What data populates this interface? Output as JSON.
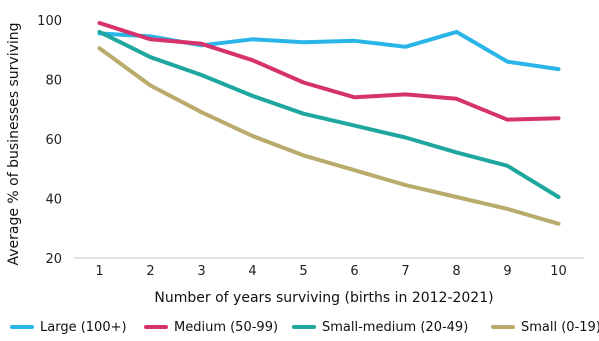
{
  "chart_data": {
    "type": "line",
    "xlabel": "Number of years surviving (births in 2012-2021)",
    "ylabel": "Average % of businesses surviving",
    "ylim": [
      20,
      100
    ],
    "yticks": [
      20,
      40,
      60,
      80,
      100
    ],
    "x": [
      1,
      2,
      3,
      4,
      5,
      6,
      7,
      8,
      9,
      10
    ],
    "grid": "baseline only",
    "legend_position": "bottom",
    "series": [
      {
        "name": "Large (100+)",
        "color": "#29b5e8",
        "values": [
          95.5,
          94.5,
          91.5,
          93.5,
          92.5,
          93,
          91,
          96,
          86,
          83.5
        ]
      },
      {
        "name": "Medium (50-99)",
        "color": "#d6336c",
        "values": [
          99,
          93.5,
          92,
          86.5,
          79,
          74,
          75,
          73.5,
          66.5,
          67
        ]
      },
      {
        "name": "Small-medium (20-49)",
        "color": "#1fa79f",
        "values": [
          96,
          87.5,
          81.5,
          74.5,
          68.5,
          64.5,
          60.5,
          55.5,
          51,
          40.5
        ]
      },
      {
        "name": "Small (0-19)",
        "color": "#b8ab6b",
        "values": [
          90.5,
          78,
          69,
          61,
          54.5,
          49.5,
          44.5,
          40.5,
          36.5,
          31.5
        ]
      }
    ]
  }
}
